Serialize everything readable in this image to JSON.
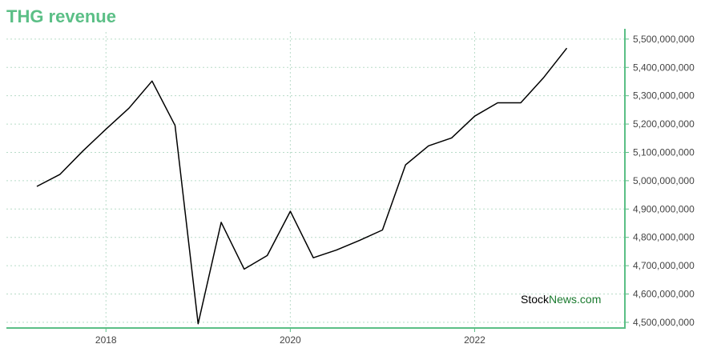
{
  "colors": {
    "accent": "#5bbf86",
    "grid": "#b8dcc8",
    "line": "#000000",
    "watermark_stock": "#000000",
    "watermark_news": "#1a7a2e"
  },
  "watermark": {
    "part1": "Stock",
    "part2": "News",
    "part3": ".com"
  },
  "chart_data": {
    "type": "line",
    "title": "THG revenue",
    "xlabel": "",
    "ylabel": "",
    "xlim": [
      2016.92,
      2023.63
    ],
    "ylim": [
      4480000000,
      5525000000
    ],
    "grid": true,
    "legend": "none",
    "x_ticks": [
      {
        "value": 2018,
        "label": "2018"
      },
      {
        "value": 2020,
        "label": "2020"
      },
      {
        "value": 2022,
        "label": "2022"
      }
    ],
    "y_ticks": [
      {
        "value": 4500000000,
        "label": "4,500,000,000"
      },
      {
        "value": 4600000000,
        "label": "4,600,000,000"
      },
      {
        "value": 4700000000,
        "label": "4,700,000,000"
      },
      {
        "value": 4800000000,
        "label": "4,800,000,000"
      },
      {
        "value": 4900000000,
        "label": "4,900,000,000"
      },
      {
        "value": 5000000000,
        "label": "5,000,000,000"
      },
      {
        "value": 5100000000,
        "label": "5,100,000,000"
      },
      {
        "value": 5200000000,
        "label": "5,200,000,000"
      },
      {
        "value": 5300000000,
        "label": "5,300,000,000"
      },
      {
        "value": 5400000000,
        "label": "5,400,000,000"
      },
      {
        "value": 5500000000,
        "label": "5,500,000,000"
      }
    ],
    "series": [
      {
        "x": [
          2017.25,
          2017.5,
          2017.75,
          2018.0,
          2018.25,
          2018.5,
          2018.75,
          2019.0,
          2019.25,
          2019.5,
          2019.75,
          2020.0,
          2020.25,
          2020.5,
          2020.75,
          2021.0,
          2021.25,
          2021.5,
          2021.75,
          2022.0,
          2022.25,
          2022.5,
          2022.75,
          2023.0
        ],
        "values": [
          4980000000,
          5022000000,
          5105000000,
          5182000000,
          5256000000,
          5352000000,
          5195000000,
          4495000000,
          4853000000,
          4688000000,
          4736000000,
          4892000000,
          4728000000,
          4755000000,
          4789000000,
          4826000000,
          5056000000,
          5123000000,
          5151000000,
          5228000000,
          5275000000,
          5275000000,
          5365000000,
          5468000000
        ]
      }
    ]
  }
}
